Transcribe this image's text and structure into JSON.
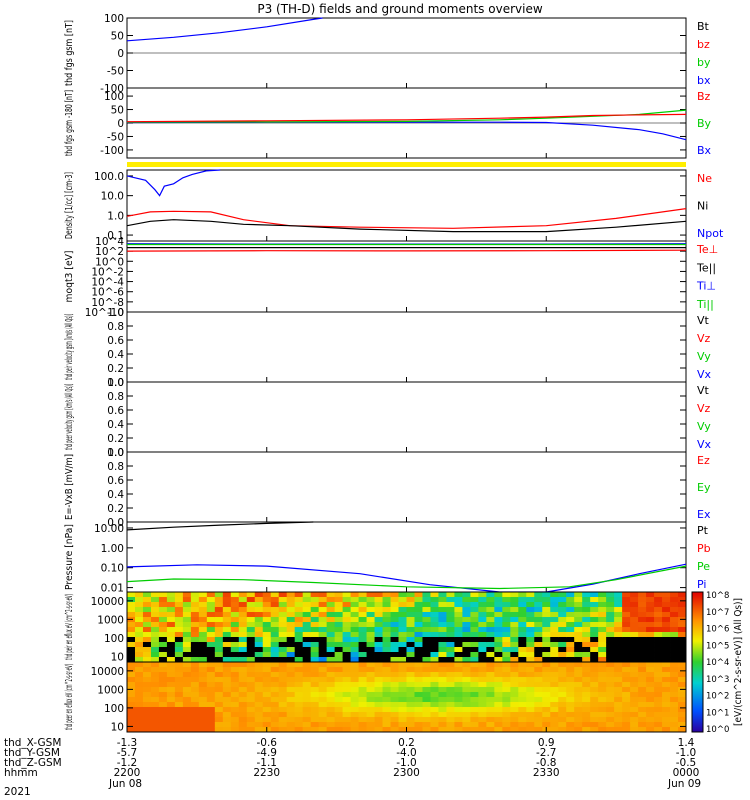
{
  "title": "P3 (TH-D) fields and ground moments overview",
  "footer": {
    "rows": [
      {
        "label": "thd_X-GSM",
        "values": [
          "-1.3",
          "-0.6",
          "0.2",
          "0.9",
          "1.4"
        ]
      },
      {
        "label": "thd_Y-GSM",
        "values": [
          "-5.7",
          "-4.9",
          "-4.0",
          "-2.7",
          "-1.0"
        ]
      },
      {
        "label": "thd_Z-GSM",
        "values": [
          "-1.2",
          "-1.1",
          "-1.0",
          "-0.8",
          "-0.5"
        ]
      },
      {
        "label": "hhmm",
        "values": [
          "2200",
          "2230",
          "2300",
          "2330",
          "0000"
        ]
      }
    ],
    "year": "2021",
    "date_start": "Jun 08",
    "date_end": "Jun 09"
  },
  "colorbar": {
    "label": "[eV/(cm^2-s-sr-eV)] (All Qs)]",
    "ticks": [
      "10^8",
      "10^7",
      "10^6",
      "10^5",
      "10^4",
      "10^3",
      "10^2",
      "10^1",
      "10^0"
    ]
  },
  "chart_data": {
    "type": "line",
    "x_unit": "minutes since 22:00 UT",
    "x_range": [
      0,
      120
    ],
    "tick_positions": [
      0,
      30,
      60,
      90,
      120
    ],
    "panels": [
      {
        "ylabel": "thd fgs gsm [nT]",
        "ylim": [
          -100,
          100
        ],
        "log": false,
        "ticks": [
          "100",
          "50",
          "0",
          "-50",
          "-100"
        ],
        "tick_values": [
          100,
          50,
          0,
          -50,
          -100
        ],
        "legend": [
          {
            "name": "Bt",
            "color": "#000000"
          },
          {
            "name": "bz",
            "color": "#ff0000"
          },
          {
            "name": "by",
            "color": "#00cc00"
          },
          {
            "name": "bx",
            "color": "#0000ff"
          }
        ],
        "series": [
          {
            "name": "bx",
            "color": "#0000ff",
            "points": [
              [
                0,
                35
              ],
              [
                10,
                45
              ],
              [
                20,
                58
              ],
              [
                30,
                75
              ],
              [
                40,
                96
              ],
              [
                42,
                100
              ]
            ]
          }
        ]
      },
      {
        "ylabel": "thd fgs gsm -180 [nT]",
        "ylim": [
          -130,
          130
        ],
        "log": false,
        "ticks": [
          "100",
          "50",
          "0",
          "-50",
          "-100"
        ],
        "tick_values": [
          100,
          50,
          0,
          -50,
          -100
        ],
        "legend": [
          {
            "name": "Bz",
            "color": "#ff0000"
          },
          {
            "name": "By",
            "color": "#00cc00"
          },
          {
            "name": "Bx",
            "color": "#0000ff"
          }
        ],
        "series": [
          {
            "name": "Bx",
            "color": "#0000ff",
            "points": [
              [
                0,
                2
              ],
              [
                30,
                3
              ],
              [
                60,
                3
              ],
              [
                80,
                3
              ],
              [
                90,
                2
              ],
              [
                100,
                -8
              ],
              [
                110,
                -25
              ],
              [
                115,
                -40
              ],
              [
                120,
                -62
              ]
            ]
          },
          {
            "name": "By",
            "color": "#00cc00",
            "points": [
              [
                0,
                3
              ],
              [
                30,
                4
              ],
              [
                60,
                6
              ],
              [
                80,
                12
              ],
              [
                90,
                18
              ],
              [
                100,
                25
              ],
              [
                110,
                32
              ],
              [
                120,
                48
              ]
            ]
          },
          {
            "name": "Bz",
            "color": "#ff0000",
            "points": [
              [
                0,
                5
              ],
              [
                30,
                8
              ],
              [
                60,
                12
              ],
              [
                80,
                18
              ],
              [
                90,
                22
              ],
              [
                100,
                28
              ],
              [
                110,
                30
              ],
              [
                120,
                32
              ]
            ]
          }
        ]
      },
      {
        "ylabel": "Density [1/cc] [cm-3]",
        "ylim": [
          0.05,
          200
        ],
        "log": true,
        "ticks": [
          "100.0",
          "10.0",
          "1.0",
          "0.1"
        ],
        "tick_values": [
          100,
          10,
          1,
          0.1
        ],
        "legend": [
          {
            "name": "Ne",
            "color": "#ff0000"
          },
          {
            "name": "Ni",
            "color": "#000000"
          },
          {
            "name": "Npot",
            "color": "#0000ff"
          }
        ],
        "series": [
          {
            "name": "Npot",
            "color": "#0000ff",
            "points": [
              [
                0,
                100
              ],
              [
                4,
                60
              ],
              [
                6,
                20
              ],
              [
                7,
                10
              ],
              [
                8,
                30
              ],
              [
                10,
                40
              ],
              [
                12,
                80
              ],
              [
                14,
                120
              ],
              [
                17,
                180
              ],
              [
                20,
                200
              ]
            ]
          },
          {
            "name": "Ne",
            "color": "#ff0000",
            "points": [
              [
                0,
                0.9
              ],
              [
                5,
                1.5
              ],
              [
                10,
                1.6
              ],
              [
                18,
                1.5
              ],
              [
                25,
                0.6
              ],
              [
                35,
                0.3
              ],
              [
                50,
                0.25
              ],
              [
                70,
                0.22
              ],
              [
                90,
                0.3
              ],
              [
                105,
                0.7
              ],
              [
                120,
                2.2
              ]
            ]
          },
          {
            "name": "Ni",
            "color": "#000000",
            "points": [
              [
                0,
                0.3
              ],
              [
                5,
                0.5
              ],
              [
                10,
                0.6
              ],
              [
                18,
                0.5
              ],
              [
                25,
                0.35
              ],
              [
                35,
                0.3
              ],
              [
                50,
                0.2
              ],
              [
                70,
                0.15
              ],
              [
                90,
                0.15
              ],
              [
                105,
                0.25
              ],
              [
                120,
                0.5
              ]
            ]
          }
        ]
      },
      {
        "ylabel": "moqt3 [eV]",
        "ylim": [
          1e-10,
          10000.0
        ],
        "log": true,
        "ticks": [
          "10^4",
          "10^2",
          "10^0",
          "10^-2",
          "10^-4",
          "10^-6",
          "10^-8",
          "10^-10"
        ],
        "tick_values": [
          10000.0,
          100,
          1,
          0.01,
          0.0001,
          1e-06,
          1e-08,
          1e-10
        ],
        "legend": [
          {
            "name": "Te⊥",
            "color": "#ff0000"
          },
          {
            "name": "Te||",
            "color": "#000000"
          },
          {
            "name": "Ti⊥",
            "color": "#0000ff"
          },
          {
            "name": "Ti||",
            "color": "#00cc00"
          }
        ],
        "series": [
          {
            "name": "Ti⊥",
            "color": "#0000ff",
            "points": [
              [
                0,
                3000
              ],
              [
                30,
                2500
              ],
              [
                60,
                2500
              ],
              [
                90,
                2500
              ],
              [
                120,
                3000
              ]
            ]
          },
          {
            "name": "Ti||",
            "color": "#00cc00",
            "points": [
              [
                0,
                2000
              ],
              [
                30,
                2000
              ],
              [
                60,
                2000
              ],
              [
                90,
                2000
              ],
              [
                120,
                2000
              ]
            ]
          },
          {
            "name": "Te⊥",
            "color": "#ff0000",
            "points": [
              [
                0,
                100
              ],
              [
                30,
                120
              ],
              [
                60,
                110
              ],
              [
                90,
                120
              ],
              [
                120,
                150
              ]
            ]
          },
          {
            "name": "Te||",
            "color": "#000000",
            "points": [
              [
                0,
                500
              ],
              [
                30,
                500
              ],
              [
                60,
                500
              ],
              [
                90,
                500
              ],
              [
                120,
                500
              ]
            ]
          }
        ]
      },
      {
        "ylabel": "thd peir velocity gsm [km/s (All Qs)]",
        "ylim": [
          0,
          1
        ],
        "log": false,
        "ticks": [
          "1.0",
          "0.8",
          "0.6",
          "0.4",
          "0.2",
          "0.0"
        ],
        "tick_values": [
          1,
          0.8,
          0.6,
          0.4,
          0.2,
          0
        ],
        "legend": [
          {
            "name": "Vt",
            "color": "#000000"
          },
          {
            "name": "Vz",
            "color": "#ff0000"
          },
          {
            "name": "Vy",
            "color": "#00cc00"
          },
          {
            "name": "Vx",
            "color": "#0000ff"
          }
        ],
        "series": []
      },
      {
        "ylabel": "thd peer velocity gsm [km/s (All Qs)]",
        "ylim": [
          0,
          1
        ],
        "log": false,
        "ticks": [
          "1.0",
          "0.8",
          "0.6",
          "0.4",
          "0.2",
          "0.0"
        ],
        "tick_values": [
          1,
          0.8,
          0.6,
          0.4,
          0.2,
          0
        ],
        "legend": [
          {
            "name": "Vt",
            "color": "#000000"
          },
          {
            "name": "Vz",
            "color": "#ff0000"
          },
          {
            "name": "Vy",
            "color": "#00cc00"
          },
          {
            "name": "Vx",
            "color": "#0000ff"
          }
        ],
        "series": []
      },
      {
        "ylabel": "E=-VxB [mV/m]",
        "ylim": [
          0,
          1
        ],
        "log": false,
        "ticks": [
          "1.0",
          "0.8",
          "0.6",
          "0.4",
          "0.2",
          "0.0"
        ],
        "tick_values": [
          1,
          0.8,
          0.6,
          0.4,
          0.2,
          0
        ],
        "legend": [
          {
            "name": "Ez",
            "color": "#ff0000"
          },
          {
            "name": "Ey",
            "color": "#00cc00"
          },
          {
            "name": "Ex",
            "color": "#0000ff"
          }
        ],
        "series": []
      },
      {
        "ylabel": "Pressure [nPa]",
        "ylim": [
          0.006,
          20
        ],
        "log": true,
        "ticks": [
          "10.00",
          "1.00",
          "0.10",
          "0.01"
        ],
        "tick_values": [
          10,
          1,
          0.1,
          0.01
        ],
        "legend": [
          {
            "name": "Pt",
            "color": "#000000"
          },
          {
            "name": "Pb",
            "color": "#ff0000"
          },
          {
            "name": "Pe",
            "color": "#00cc00"
          },
          {
            "name": "Pi",
            "color": "#0000ff"
          }
        ],
        "series": [
          {
            "name": "Pt",
            "color": "#000000",
            "points": [
              [
                0,
                8
              ],
              [
                10,
                11
              ],
              [
                20,
                14
              ],
              [
                30,
                17
              ],
              [
                40,
                20
              ]
            ]
          },
          {
            "name": "Pi",
            "color": "#0000ff",
            "points": [
              [
                0,
                0.11
              ],
              [
                15,
                0.14
              ],
              [
                30,
                0.12
              ],
              [
                50,
                0.05
              ],
              [
                65,
                0.014
              ],
              [
                80,
                0.006
              ],
              [
                90,
                0.006
              ],
              [
                100,
                0.015
              ],
              [
                110,
                0.05
              ],
              [
                120,
                0.15
              ]
            ]
          },
          {
            "name": "Pe",
            "color": "#00cc00",
            "points": [
              [
                0,
                0.02
              ],
              [
                10,
                0.027
              ],
              [
                25,
                0.025
              ],
              [
                40,
                0.018
              ],
              [
                60,
                0.011
              ],
              [
                80,
                0.009
              ],
              [
                95,
                0.011
              ],
              [
                105,
                0.025
              ],
              [
                120,
                0.12
              ]
            ]
          }
        ]
      },
      {
        "ylabel": "thd peir en eflux eV (cm^2-s-sr-eV)",
        "ylim": [
          5,
          30000
        ],
        "log": true,
        "ticks": [
          "10000",
          "1000",
          "100",
          "10"
        ],
        "tick_values": [
          10000,
          1000,
          100,
          10
        ],
        "spectrogram": true,
        "legend": [],
        "series": []
      },
      {
        "ylabel": "thd peer en eflux eV (cm^2-s-sr-eV)",
        "ylim": [
          5,
          30000
        ],
        "log": true,
        "ticks": [
          "10000",
          "1000",
          "100",
          "10"
        ],
        "tick_values": [
          10000,
          1000,
          100,
          10
        ],
        "spectrogram": true,
        "legend": [],
        "series": []
      }
    ]
  }
}
